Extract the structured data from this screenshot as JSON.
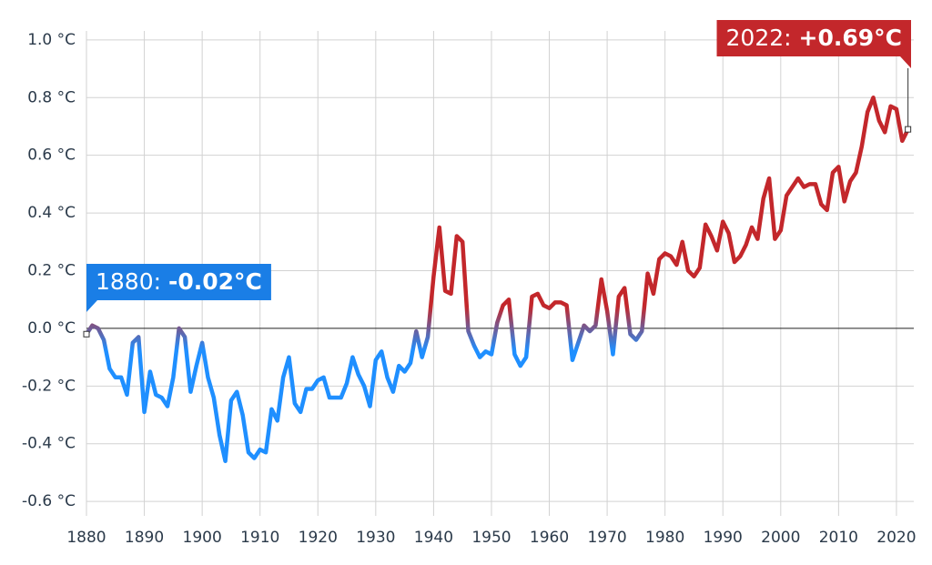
{
  "chart_data": {
    "type": "line",
    "x": [
      1880,
      1881,
      1882,
      1883,
      1884,
      1885,
      1886,
      1887,
      1888,
      1889,
      1890,
      1891,
      1892,
      1893,
      1894,
      1895,
      1896,
      1897,
      1898,
      1899,
      1900,
      1901,
      1902,
      1903,
      1904,
      1905,
      1906,
      1907,
      1908,
      1909,
      1910,
      1911,
      1912,
      1913,
      1914,
      1915,
      1916,
      1917,
      1918,
      1919,
      1920,
      1921,
      1922,
      1923,
      1924,
      1925,
      1926,
      1927,
      1928,
      1929,
      1930,
      1931,
      1932,
      1933,
      1934,
      1935,
      1936,
      1937,
      1938,
      1939,
      1940,
      1941,
      1942,
      1943,
      1944,
      1945,
      1946,
      1947,
      1948,
      1949,
      1950,
      1951,
      1952,
      1953,
      1954,
      1955,
      1956,
      1957,
      1958,
      1959,
      1960,
      1961,
      1962,
      1963,
      1964,
      1965,
      1966,
      1967,
      1968,
      1969,
      1970,
      1971,
      1972,
      1973,
      1974,
      1975,
      1976,
      1977,
      1978,
      1979,
      1980,
      1981,
      1982,
      1983,
      1984,
      1985,
      1986,
      1987,
      1988,
      1989,
      1990,
      1991,
      1992,
      1993,
      1994,
      1995,
      1996,
      1997,
      1998,
      1999,
      2000,
      2001,
      2002,
      2003,
      2004,
      2005,
      2006,
      2007,
      2008,
      2009,
      2010,
      2011,
      2012,
      2013,
      2014,
      2015,
      2016,
      2017,
      2018,
      2019,
      2020,
      2021,
      2022
    ],
    "series": [
      {
        "values": [
          -0.02,
          0.01,
          0.0,
          -0.04,
          -0.14,
          -0.17,
          -0.17,
          -0.23,
          -0.05,
          -0.03,
          -0.29,
          -0.15,
          -0.23,
          -0.24,
          -0.27,
          -0.17,
          0.0,
          -0.03,
          -0.22,
          -0.13,
          -0.05,
          -0.17,
          -0.24,
          -0.37,
          -0.46,
          -0.25,
          -0.22,
          -0.3,
          -0.43,
          -0.45,
          -0.42,
          -0.43,
          -0.28,
          -0.32,
          -0.17,
          -0.1,
          -0.26,
          -0.29,
          -0.21,
          -0.21,
          -0.18,
          -0.17,
          -0.24,
          -0.24,
          -0.24,
          -0.19,
          -0.1,
          -0.16,
          -0.2,
          -0.27,
          -0.11,
          -0.08,
          -0.17,
          -0.22,
          -0.13,
          -0.15,
          -0.12,
          -0.01,
          -0.1,
          -0.03,
          0.18,
          0.35,
          0.13,
          0.12,
          0.32,
          0.3,
          -0.01,
          -0.06,
          -0.1,
          -0.08,
          -0.09,
          0.02,
          0.08,
          0.1,
          -0.09,
          -0.13,
          -0.1,
          0.11,
          0.12,
          0.08,
          0.07,
          0.09,
          0.09,
          0.08,
          -0.11,
          -0.05,
          0.01,
          -0.01,
          0.01,
          0.17,
          0.06,
          -0.09,
          0.11,
          0.14,
          -0.02,
          -0.04,
          -0.01,
          0.19,
          0.12,
          0.24,
          0.26,
          0.25,
          0.22,
          0.3,
          0.2,
          0.18,
          0.21,
          0.36,
          0.32,
          0.27,
          0.37,
          0.33,
          0.23,
          0.25,
          0.29,
          0.35,
          0.31,
          0.45,
          0.52,
          0.31,
          0.34,
          0.46,
          0.49,
          0.52,
          0.49,
          0.5,
          0.5,
          0.43,
          0.41,
          0.54,
          0.56,
          0.44,
          0.51,
          0.54,
          0.63,
          0.75,
          0.8,
          0.72,
          0.68,
          0.77,
          0.76,
          0.65,
          0.69
        ]
      }
    ],
    "colors": {
      "positive": "#c3272b",
      "negative": "#1f8fff"
    },
    "xlim": [
      1880,
      2023
    ],
    "ylim": [
      -0.65,
      1.05
    ],
    "xticks": [
      1880,
      1890,
      1900,
      1910,
      1920,
      1930,
      1940,
      1950,
      1960,
      1970,
      1980,
      1990,
      2000,
      2010,
      2020
    ],
    "yticks": [
      {
        "value": -0.6,
        "label": "-0.6 °C"
      },
      {
        "value": -0.4,
        "label": "-0.4 °C"
      },
      {
        "value": -0.2,
        "label": "-0.2 °C"
      },
      {
        "value": 0,
        "label": "0.0 °C"
      },
      {
        "value": 0.2,
        "label": "0.2 °C"
      },
      {
        "value": 0.4,
        "label": "0.4 °C"
      },
      {
        "value": 0.6,
        "label": "0.6 °C"
      },
      {
        "value": 0.8,
        "label": "0.8 °C"
      },
      {
        "value": 1,
        "label": "1.0 °C"
      }
    ],
    "grid": true,
    "annotations": [
      {
        "label": "1880:",
        "value_label": "-0.02°C",
        "x": 1880,
        "y": -0.02,
        "color": "#1a7ee6"
      },
      {
        "label": "2022:",
        "value_label": "+0.69°C",
        "x": 2022,
        "y": 0.69,
        "color": "#c3272b"
      }
    ]
  }
}
